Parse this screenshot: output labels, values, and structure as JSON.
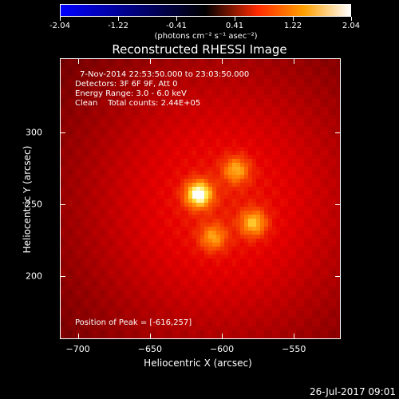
{
  "colorbar": {
    "ticks": [
      "-2.04",
      "-1.22",
      "-0.41",
      "0.41",
      "1.22",
      "2.04"
    ],
    "units": "(photons cm⁻² s⁻¹ asec⁻²)",
    "colormap": [
      "#0000ff",
      "#000000",
      "#ff2a00",
      "#ffa000",
      "#ffffff"
    ]
  },
  "image": {
    "title": "Reconstructed RHESSI Image",
    "time_range": "7-Nov-2014 22:53:50.000 to 23:03:50.000",
    "detectors": "Detectors: 3F 6F 9F, Att 0",
    "energy_range": "Energy Range: 3.0 - 6.0 keV",
    "method": "Clean    Total counts: 2.44E+05",
    "peak": "Position of Peak = [-616,257]",
    "sources": [
      {
        "x": -616,
        "y": 257,
        "intensity": 1.0
      },
      {
        "x": -590,
        "y": 274,
        "intensity": 0.55
      },
      {
        "x": -578,
        "y": 237,
        "intensity": 0.62
      },
      {
        "x": -606,
        "y": 227,
        "intensity": 0.5
      }
    ]
  },
  "axes": {
    "xlabel": "Heliocentric X (arcsec)",
    "ylabel": "Heliocentric Y (arcsec)",
    "xlim": [
      -712,
      -518
    ],
    "ylim": [
      157,
      351
    ],
    "xticks": [
      -700,
      -650,
      -600,
      -550
    ],
    "yticks": [
      200,
      250,
      300
    ]
  },
  "footer": {
    "timestamp": "26-Jul-2017 09:01"
  }
}
